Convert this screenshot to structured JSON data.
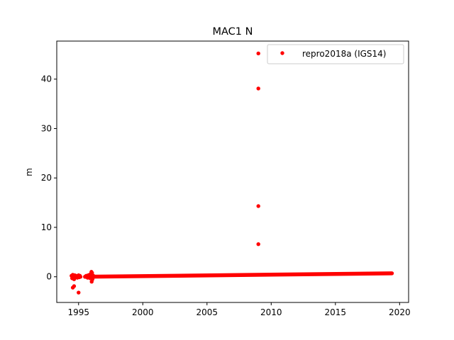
{
  "chart_data": {
    "type": "scatter",
    "title": "MAC1 N",
    "xlabel": "",
    "ylabel": "m",
    "xlim": [
      1993.3,
      2020.7
    ],
    "ylim": [
      -5.2,
      47.7
    ],
    "xticks": [
      1995,
      2000,
      2005,
      2010,
      2015,
      2020
    ],
    "xtick_labels": [
      "1995",
      "2000",
      "2005",
      "2010",
      "2015",
      "2020"
    ],
    "yticks": [
      0,
      10,
      20,
      30,
      40
    ],
    "ytick_labels": [
      "0",
      "10",
      "20",
      "30",
      "40"
    ],
    "grid": false,
    "legend": {
      "position": "top-right",
      "entries": [
        "repro2018a (IGS14)"
      ]
    },
    "series": [
      {
        "name": "repro2018a (IGS14)",
        "color": "#ff0000",
        "marker": "circle",
        "trend": {
          "start": [
            1995.5,
            0.0
          ],
          "end": [
            2019.4,
            0.7
          ]
        },
        "points": [
          [
            1994.45,
            0.2
          ],
          [
            1994.5,
            -0.3
          ],
          [
            1994.55,
            0.4
          ],
          [
            1994.6,
            0.1
          ],
          [
            1994.65,
            -0.5
          ],
          [
            1994.7,
            0.3
          ],
          [
            1994.75,
            0.0
          ],
          [
            1994.8,
            0.2
          ],
          [
            1994.9,
            -0.2
          ],
          [
            1994.95,
            0.1
          ],
          [
            1995.0,
            0.3
          ],
          [
            1995.05,
            -0.1
          ],
          [
            1995.1,
            0.2
          ],
          [
            1995.15,
            0.0
          ],
          [
            1994.55,
            -2.2
          ],
          [
            1994.65,
            -1.9
          ],
          [
            1995.0,
            -3.2
          ],
          [
            1995.55,
            0.1
          ],
          [
            1995.6,
            0.2
          ],
          [
            1995.7,
            -0.2
          ],
          [
            1995.75,
            0.3
          ],
          [
            1995.8,
            0.0
          ],
          [
            1995.85,
            0.4
          ],
          [
            1995.9,
            -0.3
          ],
          [
            1995.95,
            0.6
          ],
          [
            1996.0,
            1.0
          ],
          [
            1996.02,
            -1.0
          ],
          [
            1996.05,
            0.8
          ],
          [
            1996.08,
            -0.5
          ],
          [
            1996.1,
            0.3
          ],
          [
            1996.12,
            -0.2
          ],
          [
            1996.15,
            0.2
          ],
          [
            2009.0,
            45.2
          ],
          [
            2009.0,
            38.1
          ],
          [
            2009.0,
            14.3
          ],
          [
            2009.0,
            6.6
          ]
        ]
      }
    ]
  }
}
